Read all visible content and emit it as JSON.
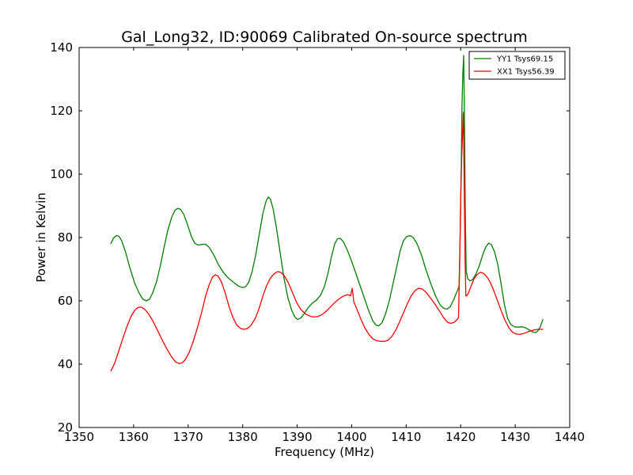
{
  "chart_data": {
    "type": "line",
    "title": "Gal_Long32, ID:90069 Calibrated On-source spectrum",
    "xlabel": "Frequency (MHz)",
    "ylabel": "Power in Kelvin",
    "xlim": [
      1350,
      1440
    ],
    "ylim": [
      20,
      140
    ],
    "xticks": [
      1350,
      1360,
      1370,
      1380,
      1390,
      1400,
      1410,
      1420,
      1430,
      1440
    ],
    "yticks": [
      20,
      40,
      60,
      80,
      100,
      120,
      140
    ],
    "grid": false,
    "legend_position": "top-right",
    "series": [
      {
        "name": "YY1 Tsys69.15",
        "color": "#008000",
        "points": [
          [
            1355.8,
            78
          ],
          [
            1356.3,
            79.8
          ],
          [
            1356.8,
            80.6
          ],
          [
            1357.3,
            80.4
          ],
          [
            1357.8,
            79
          ],
          [
            1358.5,
            75.5
          ],
          [
            1359.3,
            70.5
          ],
          [
            1360.2,
            65.5
          ],
          [
            1361.0,
            62.5
          ],
          [
            1361.7,
            60.5
          ],
          [
            1362.3,
            60
          ],
          [
            1362.9,
            60.5
          ],
          [
            1363.5,
            62.5
          ],
          [
            1364.2,
            66
          ],
          [
            1364.9,
            71
          ],
          [
            1365.6,
            77
          ],
          [
            1366.3,
            82.5
          ],
          [
            1367.0,
            86.5
          ],
          [
            1367.6,
            88.6
          ],
          [
            1368.1,
            89.2
          ],
          [
            1368.6,
            88.9
          ],
          [
            1369.2,
            87.3
          ],
          [
            1369.9,
            84
          ],
          [
            1370.6,
            80.3
          ],
          [
            1371.2,
            78.2
          ],
          [
            1371.8,
            77.6
          ],
          [
            1372.5,
            77.8
          ],
          [
            1373.2,
            77.9
          ],
          [
            1373.9,
            76.8
          ],
          [
            1374.7,
            74.5
          ],
          [
            1375.5,
            71.6
          ],
          [
            1376.4,
            69.1
          ],
          [
            1377.3,
            67.3
          ],
          [
            1378.3,
            65.9
          ],
          [
            1379.2,
            64.7
          ],
          [
            1379.9,
            64.2
          ],
          [
            1380.5,
            64.4
          ],
          [
            1381.1,
            65.8
          ],
          [
            1381.7,
            69
          ],
          [
            1382.4,
            74.5
          ],
          [
            1383.1,
            81.5
          ],
          [
            1383.7,
            87.5
          ],
          [
            1384.3,
            91.5
          ],
          [
            1384.7,
            92.8
          ],
          [
            1385.1,
            92.1
          ],
          [
            1385.6,
            89
          ],
          [
            1386.2,
            83
          ],
          [
            1386.9,
            75
          ],
          [
            1387.6,
            67
          ],
          [
            1388.3,
            61
          ],
          [
            1389.0,
            57
          ],
          [
            1389.6,
            54.8
          ],
          [
            1390.1,
            54.1
          ],
          [
            1390.7,
            54.6
          ],
          [
            1391.3,
            56
          ],
          [
            1392.0,
            57.8
          ],
          [
            1392.8,
            59.3
          ],
          [
            1393.6,
            60.3
          ],
          [
            1394.3,
            61.8
          ],
          [
            1395.0,
            64.5
          ],
          [
            1395.7,
            69
          ],
          [
            1396.3,
            74
          ],
          [
            1396.9,
            78
          ],
          [
            1397.4,
            79.6
          ],
          [
            1397.9,
            79.7
          ],
          [
            1398.5,
            78.6
          ],
          [
            1399.2,
            76
          ],
          [
            1400.0,
            72.5
          ],
          [
            1400.8,
            68.5
          ],
          [
            1401.6,
            64.5
          ],
          [
            1402.4,
            60.5
          ],
          [
            1403.2,
            56.5
          ],
          [
            1403.9,
            53.6
          ],
          [
            1404.5,
            52.3
          ],
          [
            1405.0,
            52.1
          ],
          [
            1405.6,
            53.2
          ],
          [
            1406.2,
            55.8
          ],
          [
            1406.9,
            60
          ],
          [
            1407.6,
            65.5
          ],
          [
            1408.3,
            71
          ],
          [
            1408.9,
            75.8
          ],
          [
            1409.5,
            79
          ],
          [
            1410.1,
            80.3
          ],
          [
            1410.7,
            80.6
          ],
          [
            1411.3,
            80
          ],
          [
            1412.0,
            78
          ],
          [
            1412.8,
            74.5
          ],
          [
            1413.6,
            70
          ],
          [
            1414.5,
            65.5
          ],
          [
            1415.4,
            61.5
          ],
          [
            1416.2,
            58.8
          ],
          [
            1416.9,
            57.6
          ],
          [
            1417.5,
            57.4
          ],
          [
            1418.1,
            58.2
          ],
          [
            1418.7,
            60.3
          ],
          [
            1419.3,
            62.8
          ],
          [
            1419.7,
            64.5
          ],
          [
            1419.9,
            80
          ],
          [
            1420.1,
            102
          ],
          [
            1420.25,
            122
          ],
          [
            1420.4,
            132
          ],
          [
            1420.55,
            137.5
          ],
          [
            1420.7,
            116
          ],
          [
            1420.85,
            88
          ],
          [
            1421.0,
            69.5
          ],
          [
            1421.3,
            67
          ],
          [
            1421.7,
            66.3
          ],
          [
            1422.2,
            66.7
          ],
          [
            1422.8,
            68.5
          ],
          [
            1423.4,
            71
          ],
          [
            1424.0,
            74.3
          ],
          [
            1424.6,
            77
          ],
          [
            1425.1,
            78.2
          ],
          [
            1425.6,
            77.8
          ],
          [
            1426.2,
            75.6
          ],
          [
            1426.8,
            71.5
          ],
          [
            1427.4,
            65.5
          ],
          [
            1428.0,
            59
          ],
          [
            1428.6,
            54.5
          ],
          [
            1429.2,
            52.5
          ],
          [
            1429.9,
            51.8
          ],
          [
            1430.6,
            51.7
          ],
          [
            1431.3,
            51.8
          ],
          [
            1432.0,
            51.4
          ],
          [
            1432.7,
            50.7
          ],
          [
            1433.3,
            50.1
          ],
          [
            1433.8,
            50
          ],
          [
            1434.2,
            50.6
          ],
          [
            1434.6,
            51.8
          ],
          [
            1435.1,
            54.2
          ]
        ]
      },
      {
        "name": "XX1 Tsys56.39",
        "color": "#ff0000",
        "points": [
          [
            1355.8,
            37.8
          ],
          [
            1356.5,
            40.2
          ],
          [
            1357.2,
            43.8
          ],
          [
            1358.0,
            48
          ],
          [
            1358.8,
            52
          ],
          [
            1359.5,
            55
          ],
          [
            1360.2,
            57
          ],
          [
            1360.8,
            57.9
          ],
          [
            1361.4,
            58
          ],
          [
            1362.0,
            57.4
          ],
          [
            1362.7,
            56
          ],
          [
            1363.5,
            53.7
          ],
          [
            1364.4,
            50.6
          ],
          [
            1365.3,
            47.4
          ],
          [
            1366.2,
            44.5
          ],
          [
            1367.0,
            42.2
          ],
          [
            1367.7,
            40.7
          ],
          [
            1368.3,
            40.2
          ],
          [
            1368.9,
            40.4
          ],
          [
            1369.5,
            41.5
          ],
          [
            1370.2,
            43.7
          ],
          [
            1370.9,
            47
          ],
          [
            1371.7,
            51.5
          ],
          [
            1372.5,
            56.5
          ],
          [
            1373.2,
            61.5
          ],
          [
            1373.9,
            65.3
          ],
          [
            1374.5,
            67.6
          ],
          [
            1375.0,
            68.2
          ],
          [
            1375.5,
            67.8
          ],
          [
            1376.1,
            66
          ],
          [
            1376.8,
            62.5
          ],
          [
            1377.5,
            58.2
          ],
          [
            1378.2,
            54.8
          ],
          [
            1378.9,
            52.4
          ],
          [
            1379.6,
            51.3
          ],
          [
            1380.2,
            51
          ],
          [
            1380.8,
            51.2
          ],
          [
            1381.5,
            52.2
          ],
          [
            1382.3,
            54.4
          ],
          [
            1383.0,
            57.5
          ],
          [
            1383.7,
            61.5
          ],
          [
            1384.4,
            64.8
          ],
          [
            1385.1,
            67.2
          ],
          [
            1385.8,
            68.6
          ],
          [
            1386.4,
            69.2
          ],
          [
            1387.0,
            69
          ],
          [
            1387.6,
            68
          ],
          [
            1388.3,
            66
          ],
          [
            1389.1,
            62.8
          ],
          [
            1389.9,
            59.5
          ],
          [
            1390.7,
            57.2
          ],
          [
            1391.5,
            55.9
          ],
          [
            1392.3,
            55.2
          ],
          [
            1393.0,
            54.9
          ],
          [
            1393.7,
            55
          ],
          [
            1394.4,
            55.5
          ],
          [
            1395.2,
            56.5
          ],
          [
            1396.0,
            57.9
          ],
          [
            1396.8,
            59.3
          ],
          [
            1397.6,
            60.5
          ],
          [
            1398.3,
            61.3
          ],
          [
            1398.9,
            61.8
          ],
          [
            1399.4,
            61.9
          ],
          [
            1399.8,
            61.6
          ],
          [
            1400.1,
            64
          ],
          [
            1400.4,
            59.6
          ],
          [
            1400.9,
            57.6
          ],
          [
            1401.6,
            54.6
          ],
          [
            1402.4,
            51.5
          ],
          [
            1403.2,
            49.3
          ],
          [
            1403.9,
            48
          ],
          [
            1404.6,
            47.4
          ],
          [
            1405.3,
            47.2
          ],
          [
            1406.0,
            47.2
          ],
          [
            1406.7,
            47.6
          ],
          [
            1407.4,
            48.8
          ],
          [
            1408.1,
            50.8
          ],
          [
            1408.8,
            53.4
          ],
          [
            1409.5,
            56.2
          ],
          [
            1410.2,
            59
          ],
          [
            1410.9,
            61.5
          ],
          [
            1411.6,
            63.2
          ],
          [
            1412.3,
            64
          ],
          [
            1413.0,
            63.7
          ],
          [
            1413.7,
            62.6
          ],
          [
            1414.5,
            60.8
          ],
          [
            1415.3,
            58.9
          ],
          [
            1416.1,
            56.8
          ],
          [
            1416.9,
            54.6
          ],
          [
            1417.6,
            53.2
          ],
          [
            1418.2,
            52.9
          ],
          [
            1418.8,
            53.2
          ],
          [
            1419.3,
            54
          ],
          [
            1419.6,
            54.7
          ],
          [
            1419.8,
            70
          ],
          [
            1420.0,
            92
          ],
          [
            1420.2,
            106
          ],
          [
            1420.35,
            113
          ],
          [
            1420.5,
            119.5
          ],
          [
            1420.65,
            96
          ],
          [
            1420.8,
            74
          ],
          [
            1420.95,
            61.5
          ],
          [
            1421.3,
            62
          ],
          [
            1421.8,
            64.2
          ],
          [
            1422.4,
            66.8
          ],
          [
            1423.0,
            68.3
          ],
          [
            1423.6,
            69
          ],
          [
            1424.2,
            68.7
          ],
          [
            1424.8,
            67.6
          ],
          [
            1425.4,
            65.9
          ],
          [
            1426.0,
            63.5
          ],
          [
            1426.7,
            60.3
          ],
          [
            1427.4,
            57
          ],
          [
            1428.1,
            54
          ],
          [
            1428.8,
            51.6
          ],
          [
            1429.5,
            50.1
          ],
          [
            1430.2,
            49.5
          ],
          [
            1430.9,
            49.4
          ],
          [
            1431.6,
            49.7
          ],
          [
            1432.3,
            50.2
          ],
          [
            1433.0,
            50.6
          ],
          [
            1433.7,
            50.9
          ],
          [
            1434.4,
            51
          ],
          [
            1435.1,
            51
          ]
        ]
      }
    ]
  }
}
